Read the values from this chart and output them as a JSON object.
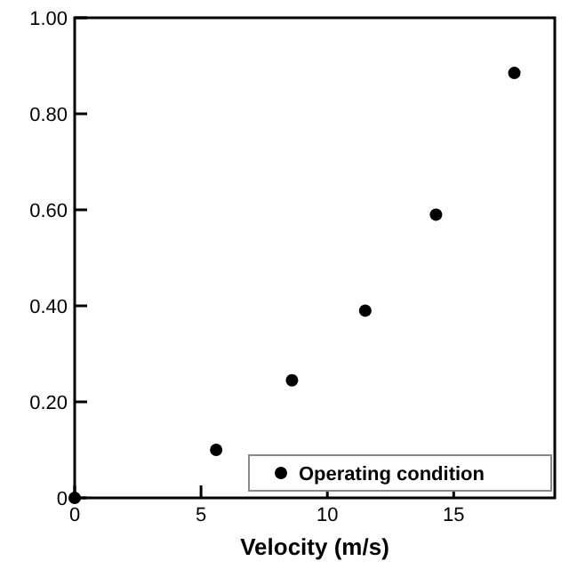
{
  "chart_data": {
    "type": "scatter",
    "xlabel": "Velocity (m/s)",
    "x": [
      0,
      5.6,
      8.6,
      11.5,
      14.3,
      17.4
    ],
    "series": [
      {
        "name": "Operating condition",
        "color": "#000000",
        "values": [
          0,
          0.1,
          0.245,
          0.39,
          0.59,
          0.885
        ]
      }
    ],
    "xlim": [
      0,
      19
    ],
    "xticks": [
      0,
      5,
      10,
      15
    ],
    "ylim": [
      0,
      1
    ],
    "yticks": [
      0,
      {
        "value": 0.2,
        "label": "0.20"
      },
      {
        "value": 0.4,
        "label": "0.40"
      },
      {
        "value": 0.6,
        "label": "0.60"
      },
      {
        "value": 0.8,
        "label": "0.80"
      },
      {
        "value": 1,
        "label": "1.00"
      }
    ],
    "legend": "bottom right",
    "marker": "circle",
    "grid": false
  }
}
